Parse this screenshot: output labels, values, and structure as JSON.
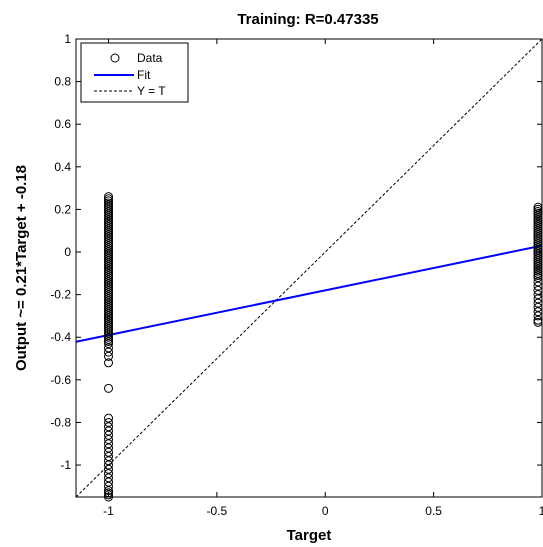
{
  "chart_data": {
    "type": "scatter",
    "title": "Training: R=0.47335",
    "xlabel": "Target",
    "ylabel": "Output ~= 0.21*Target + -0.18",
    "xlim": [
      -1.15,
      1.0
    ],
    "ylim": [
      -1.15,
      1.0
    ],
    "xticks": [
      -1,
      -0.5,
      0,
      0.5,
      1
    ],
    "xtick_labels": [
      "-1",
      "-0.5",
      "0",
      "0.5",
      "1"
    ],
    "yticks": [
      -1,
      -0.8,
      -0.6,
      -0.4,
      -0.2,
      0,
      0.2,
      0.4,
      0.6,
      0.8,
      1
    ],
    "ytick_labels": [
      "-1",
      "-0.8",
      "-0.6",
      "-0.4",
      "-0.2",
      "0",
      "0.2",
      "0.4",
      "0.6",
      "0.8",
      "1"
    ],
    "grid": false,
    "legend_position": "top-left",
    "legend": [
      "Data",
      "Fit",
      "Y = T"
    ],
    "colors": {
      "data": "#000000",
      "fit": "#0000ff",
      "ideal": "#000000"
    },
    "series": [
      {
        "name": "Data",
        "kind": "markers",
        "x": [
          -1,
          -1,
          -1,
          -1,
          -1,
          -1,
          -1,
          -1,
          -1,
          -1,
          -1,
          -1,
          -1,
          -1,
          -1,
          -1,
          -1,
          -1,
          -1,
          -1,
          -1,
          -1,
          -1,
          -1,
          -1,
          -1,
          -1,
          -1,
          -1,
          -1,
          -1,
          -1,
          -1,
          -1,
          -1,
          -1,
          -1,
          -1,
          -1,
          -1,
          -1,
          -1,
          -1,
          -1,
          -1,
          -1,
          -1,
          -1,
          -1,
          -1,
          -1,
          -1,
          -1,
          -1,
          -1,
          -1,
          -1,
          -1,
          -1,
          -1,
          -1,
          -1,
          -1,
          -1,
          -1,
          -1,
          -1,
          -1,
          -1,
          -1,
          -1,
          -1,
          -1,
          -1,
          -1,
          -1,
          -1,
          -1,
          -1,
          -1,
          -1,
          -1,
          -1,
          -1,
          -1,
          -1,
          -1,
          -1,
          -1,
          -1,
          -1,
          -1,
          -1,
          -1,
          -1,
          -1,
          1,
          1,
          1,
          1,
          1,
          1,
          1,
          1,
          1,
          1,
          1,
          1,
          1,
          1,
          1,
          1,
          1,
          1,
          1,
          1,
          1,
          1,
          1,
          1,
          1,
          1,
          1,
          1,
          1,
          1,
          1,
          1,
          1,
          1,
          1,
          1,
          1,
          1,
          1,
          1,
          1,
          1,
          1,
          1,
          1
        ],
        "y": [
          0.26,
          0.25,
          0.24,
          0.23,
          0.22,
          0.21,
          0.2,
          0.19,
          0.18,
          0.17,
          0.16,
          0.15,
          0.14,
          0.13,
          0.12,
          0.11,
          0.1,
          0.09,
          0.08,
          0.07,
          0.06,
          0.05,
          0.04,
          0.03,
          0.02,
          0.01,
          0.0,
          -0.01,
          -0.02,
          -0.03,
          -0.04,
          -0.05,
          -0.06,
          -0.07,
          -0.08,
          -0.09,
          -0.1,
          -0.11,
          -0.12,
          -0.13,
          -0.14,
          -0.15,
          -0.16,
          -0.17,
          -0.18,
          -0.19,
          -0.2,
          -0.21,
          -0.22,
          -0.23,
          -0.24,
          -0.25,
          -0.26,
          -0.27,
          -0.28,
          -0.29,
          -0.3,
          -0.31,
          -0.32,
          -0.33,
          -0.34,
          -0.35,
          -0.36,
          -0.37,
          -0.38,
          -0.39,
          -0.4,
          -0.41,
          -0.42,
          -0.43,
          -0.45,
          -0.47,
          -0.49,
          -0.52,
          -0.64,
          -0.78,
          -0.8,
          -0.82,
          -0.84,
          -0.86,
          -0.88,
          -0.9,
          -0.92,
          -0.94,
          -0.96,
          -0.98,
          -1.0,
          -1.02,
          -1.04,
          -1.06,
          -1.08,
          -1.1,
          -1.12,
          -1.13,
          -1.14,
          -1.15,
          0.21,
          0.2,
          0.19,
          0.18,
          0.17,
          0.16,
          0.15,
          0.14,
          0.13,
          0.12,
          0.11,
          0.1,
          0.09,
          0.08,
          0.07,
          0.06,
          0.05,
          0.04,
          0.03,
          0.02,
          0.01,
          0.0,
          -0.01,
          -0.02,
          -0.03,
          -0.04,
          -0.05,
          -0.06,
          -0.07,
          -0.08,
          -0.09,
          -0.1,
          -0.11,
          -0.12,
          -0.14,
          -0.16,
          -0.18,
          -0.2,
          -0.22,
          -0.24,
          -0.26,
          -0.28,
          -0.3,
          -0.32,
          -0.33
        ]
      },
      {
        "name": "Fit",
        "kind": "line",
        "x": [
          -1.15,
          1.0
        ],
        "y": [
          -0.4215,
          0.03
        ]
      },
      {
        "name": "Y = T",
        "kind": "dashed-line",
        "x": [
          -1.15,
          1.0
        ],
        "y": [
          -1.15,
          1.0
        ]
      }
    ]
  }
}
